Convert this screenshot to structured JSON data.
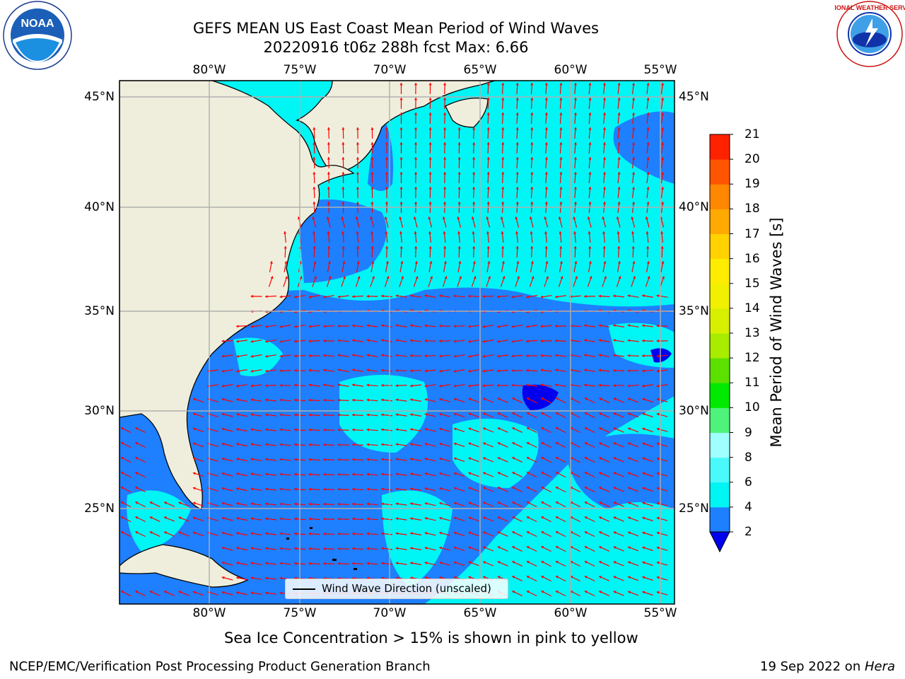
{
  "header": {
    "title_line1": "GEFS MEAN US East Coast Mean Period of Wind Waves",
    "title_line2": "20220916 t06z 288h fcst   Max: 6.66"
  },
  "logos": {
    "left": {
      "icon": "noaa-logo",
      "text": "NOAA",
      "ring_text": "NATIONAL OCEANIC AND ATMOSPHERIC ADMINISTRATION · U.S. DEPARTMENT OF COMMERCE"
    },
    "right": {
      "icon": "national-weather-service-logo",
      "ring_text": "NATIONAL WEATHER SERVICE"
    }
  },
  "map": {
    "lon_ticks": [
      "80°W",
      "75°W",
      "70°W",
      "65°W",
      "60°W",
      "55°W"
    ],
    "lat_ticks": [
      "45°N",
      "40°N",
      "35°N",
      "30°N",
      "25°N"
    ],
    "colors": {
      "land": "#efeedc",
      "ocean_low": "#1e7fff",
      "ocean_mid": "#00f5f5",
      "ocean_min": "#0000ee",
      "arrow": "#ff0000",
      "grid": "#b0b0b0"
    },
    "legend": {
      "label": "Wind Wave Direction (unscaled)"
    }
  },
  "colorbar": {
    "title": "Mean Period of Wind Waves [s]",
    "ticks": [
      "2",
      "4",
      "6",
      "8",
      "9",
      "10",
      "11",
      "12",
      "13",
      "14",
      "15",
      "16",
      "17",
      "18",
      "19",
      "20",
      "21"
    ],
    "colors": [
      "#1e7fff",
      "#00f5f5",
      "#4afafa",
      "#a0ffff",
      "#4ff27a",
      "#00ea00",
      "#5ce000",
      "#a8ec00",
      "#d8f000",
      "#f0f000",
      "#ffec00",
      "#ffd200",
      "#ffaa00",
      "#ff8800",
      "#ff5500",
      "#ff2200"
    ],
    "under_color": "#0000ee"
  },
  "note": "Sea Ice Concentration > 15% is shown in pink to yellow",
  "footer": {
    "left": "NCEP/EMC/Verification Post Processing Product Generation Branch",
    "right_prefix": "19 Sep 2022 on ",
    "right_host": "Hera"
  }
}
